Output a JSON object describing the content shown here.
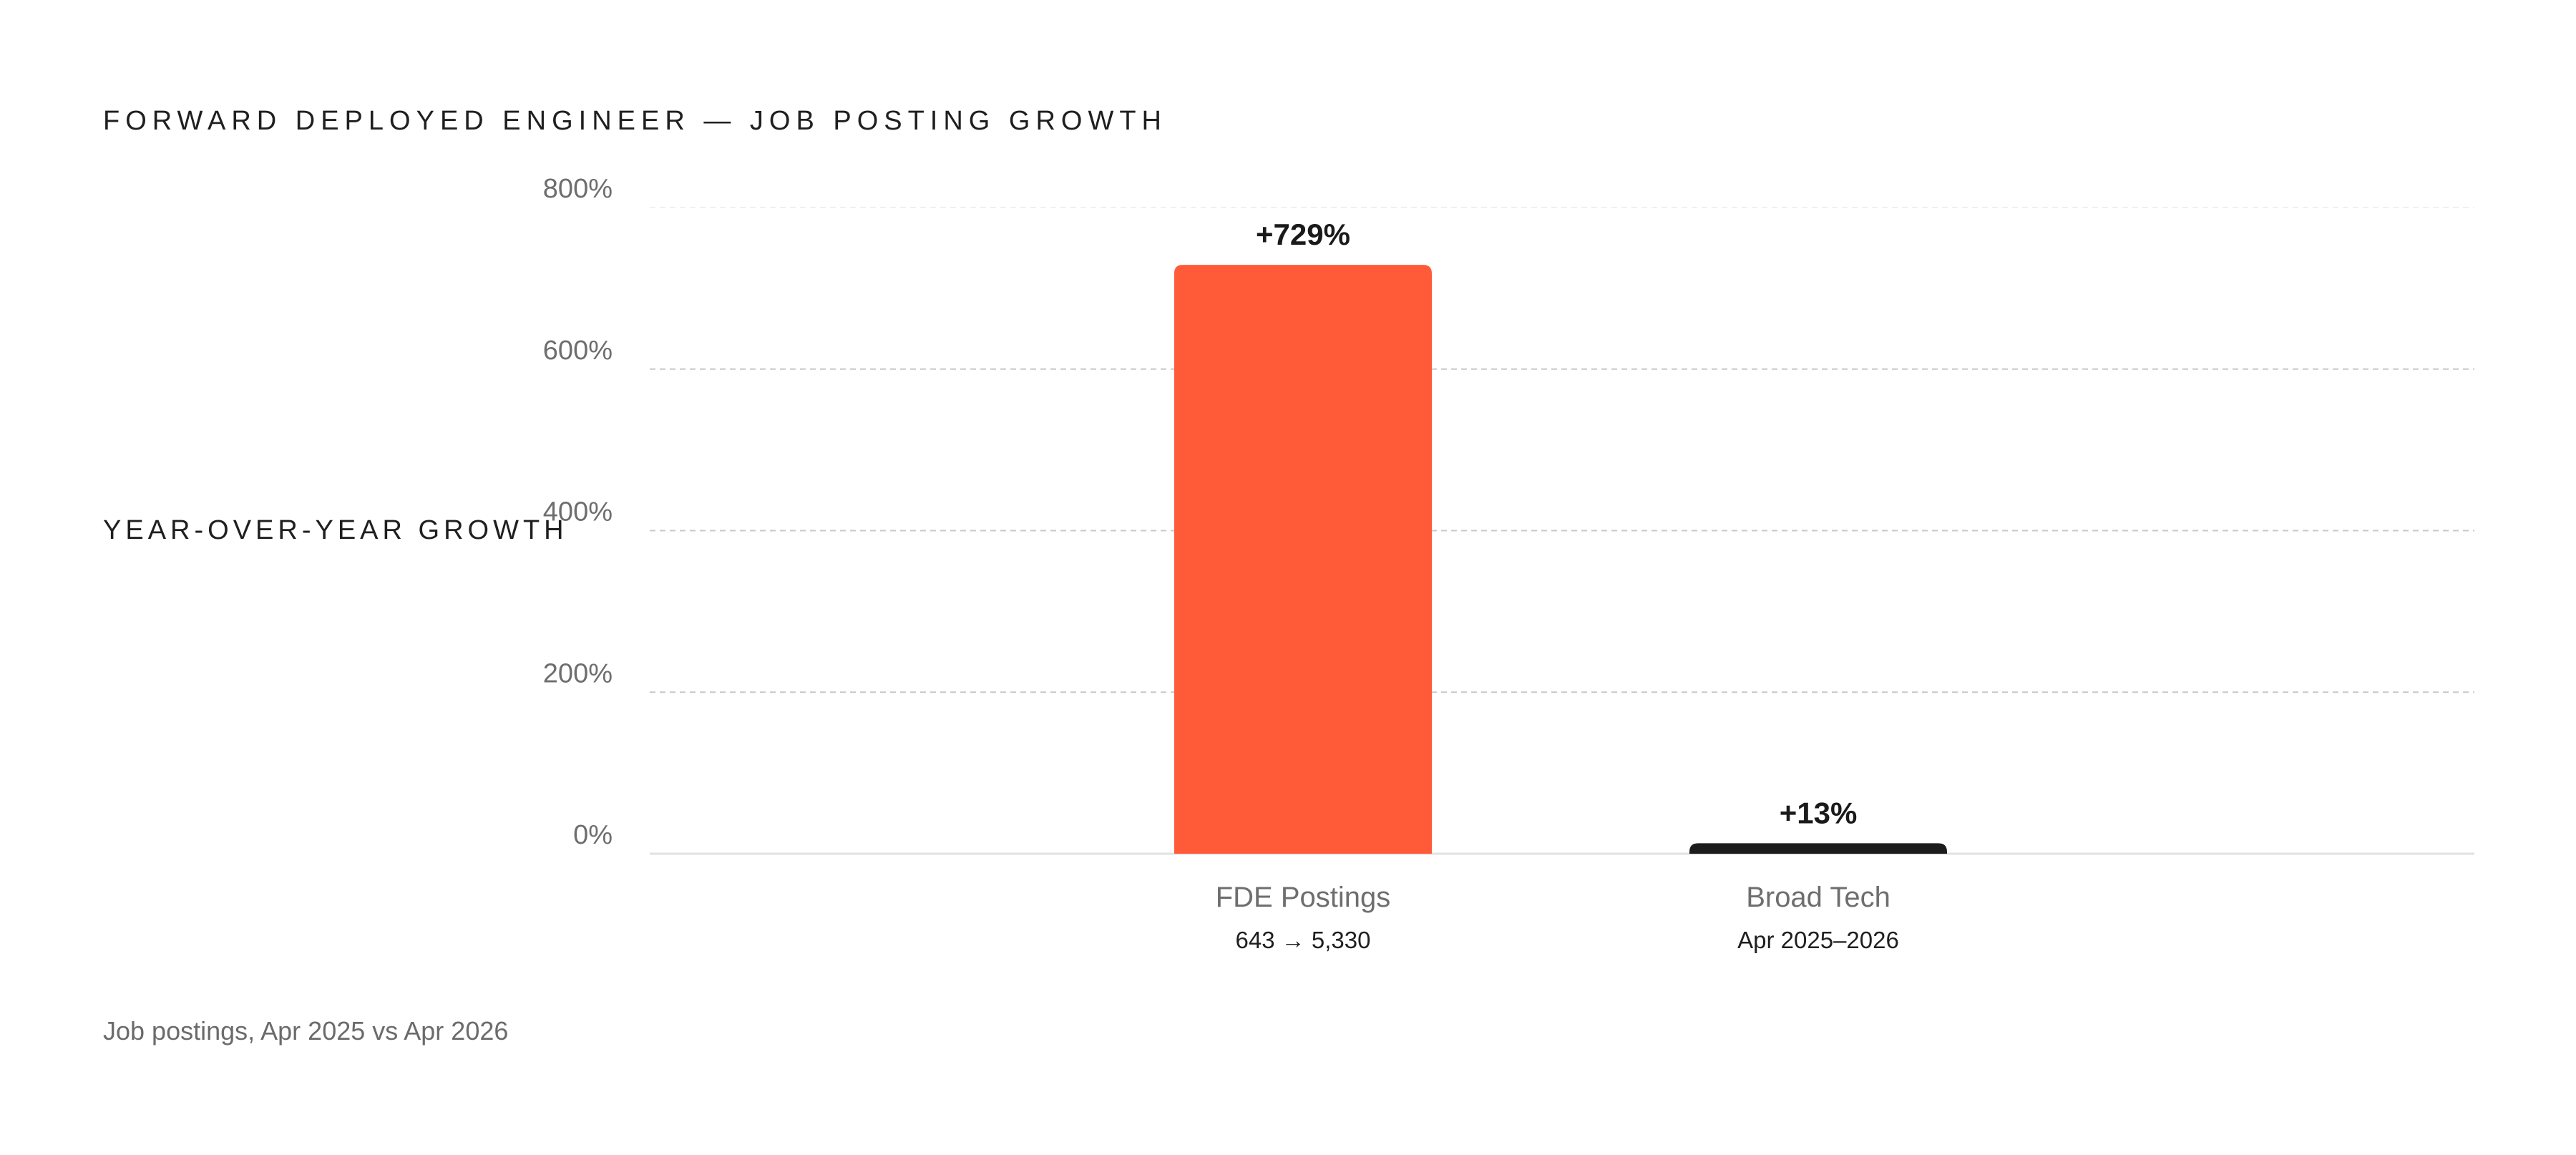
{
  "chart_data": {
    "type": "bar",
    "title": "FORWARD DEPLOYED ENGINEER — JOB POSTING GROWTH",
    "ylabel": "YEAR-OVER-YEAR GROWTH",
    "xlabel": "",
    "ylim": [
      0,
      800
    ],
    "yticks": [
      0,
      200,
      400,
      600,
      800
    ],
    "ytick_labels": [
      "0%",
      "200%",
      "400%",
      "600%",
      "800%"
    ],
    "grid": true,
    "categories": [
      "FDE Postings",
      "Broad Tech"
    ],
    "category_sublabels": [
      "643 → 5,330",
      "Apr 2025–2026"
    ],
    "values": [
      729,
      13
    ],
    "value_labels": [
      "+729%",
      "+13%"
    ],
    "colors": [
      "#ff5b38",
      "#1c1c1c"
    ],
    "caption": "Job postings, Apr 2025 vs Apr 2026"
  }
}
